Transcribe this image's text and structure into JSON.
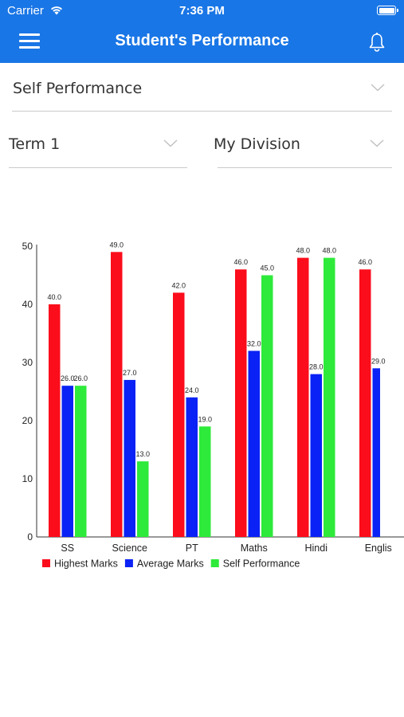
{
  "status_bar": {
    "carrier": "Carrier",
    "time": "7:36 PM"
  },
  "header": {
    "title": "Student's Performance",
    "menu_icon": "hamburger-menu-icon",
    "notification_icon": "bell-icon"
  },
  "filters": {
    "performance_type": "Self Performance",
    "term": "Term 1",
    "division": "My Division"
  },
  "chart_data": {
    "type": "bar",
    "categories": [
      "SS",
      "Science",
      "PT",
      "Maths",
      "Hindi",
      "Englis"
    ],
    "series": [
      {
        "name": "Highest Marks",
        "color": "#fb0d1b",
        "values": [
          40.0,
          49.0,
          42.0,
          46.0,
          48.0,
          46.0
        ]
      },
      {
        "name": "Average Marks",
        "color": "#0a22f5",
        "values": [
          26.0,
          27.0,
          24.0,
          32.0,
          28.0,
          29.0
        ]
      },
      {
        "name": "Self Performance",
        "color": "#2eea3a",
        "values": [
          26.0,
          13.0,
          19.0,
          45.0,
          48.0,
          null
        ]
      }
    ],
    "yticks": [
      0,
      10,
      20,
      30,
      40,
      50
    ],
    "ylim": [
      0,
      50
    ],
    "value_labels": true,
    "legend": "bottom-left",
    "grid": false
  }
}
